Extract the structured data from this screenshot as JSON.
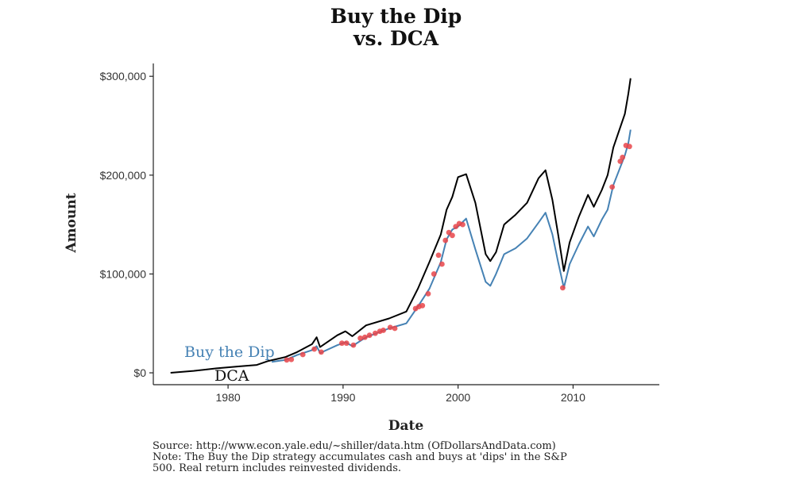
{
  "chart_data": {
    "type": "line",
    "title_line1": "Buy the Dip",
    "title_line2": "vs. DCA",
    "xlabel": "Date",
    "ylabel": "Amount",
    "xlim": [
      1973.5,
      2017.5
    ],
    "ylim": [
      -12000,
      313000
    ],
    "x_ticks": [
      1980,
      1990,
      2000,
      2010
    ],
    "x_tick_labels": [
      "1980",
      "1990",
      "2000",
      "2010"
    ],
    "y_ticks": [
      0,
      100000,
      200000,
      300000
    ],
    "y_tick_labels": [
      "$0",
      "$100,000",
      "$200,000",
      "$300,000"
    ],
    "grid": false,
    "legend": "inline labels",
    "series": [
      {
        "name": "DCA",
        "color": "#000000",
        "points": [
          [
            1975,
            0
          ],
          [
            1977,
            2000
          ],
          [
            1979,
            4500
          ],
          [
            1981,
            6500
          ],
          [
            1982.5,
            8000
          ],
          [
            1983.5,
            12000
          ],
          [
            1985,
            16000
          ],
          [
            1986,
            21000
          ],
          [
            1987.3,
            29000
          ],
          [
            1987.7,
            36000
          ],
          [
            1988,
            26000
          ],
          [
            1989.5,
            38000
          ],
          [
            1990.2,
            42000
          ],
          [
            1990.8,
            37000
          ],
          [
            1992,
            48000
          ],
          [
            1994,
            55000
          ],
          [
            1995.5,
            62000
          ],
          [
            1996.5,
            85000
          ],
          [
            1997.5,
            112000
          ],
          [
            1998.5,
            140000
          ],
          [
            1999,
            165000
          ],
          [
            1999.5,
            178000
          ],
          [
            2000,
            198000
          ],
          [
            2000.7,
            201000
          ],
          [
            2001.5,
            172000
          ],
          [
            2002.4,
            120000
          ],
          [
            2002.8,
            113000
          ],
          [
            2003.3,
            122000
          ],
          [
            2004,
            150000
          ],
          [
            2005,
            160000
          ],
          [
            2006,
            172000
          ],
          [
            2007,
            197000
          ],
          [
            2007.6,
            205000
          ],
          [
            2008.2,
            175000
          ],
          [
            2008.7,
            140000
          ],
          [
            2009.2,
            103000
          ],
          [
            2009.7,
            132000
          ],
          [
            2010.5,
            158000
          ],
          [
            2011.3,
            180000
          ],
          [
            2011.8,
            168000
          ],
          [
            2012.5,
            185000
          ],
          [
            2013,
            200000
          ],
          [
            2013.5,
            228000
          ],
          [
            2014.5,
            262000
          ],
          [
            2014.8,
            282000
          ],
          [
            2015,
            298000
          ]
        ]
      },
      {
        "name": "Buy the Dip",
        "color": "#4682b4",
        "points": [
          [
            1983.8,
            11000
          ],
          [
            1985,
            13000
          ],
          [
            1986,
            18000
          ],
          [
            1987.3,
            23000
          ],
          [
            1987.7,
            27000
          ],
          [
            1988,
            20000
          ],
          [
            1989.5,
            28000
          ],
          [
            1990.2,
            31000
          ],
          [
            1990.8,
            27000
          ],
          [
            1992,
            36000
          ],
          [
            1994,
            45000
          ],
          [
            1995.5,
            50000
          ],
          [
            1996.5,
            67000
          ],
          [
            1997.5,
            85000
          ],
          [
            1998.5,
            112000
          ],
          [
            1999,
            135000
          ],
          [
            1999.5,
            145000
          ],
          [
            2000,
            148000
          ],
          [
            2000.7,
            156000
          ],
          [
            2001.5,
            125000
          ],
          [
            2002.4,
            92000
          ],
          [
            2002.8,
            88000
          ],
          [
            2003.3,
            100000
          ],
          [
            2004,
            120000
          ],
          [
            2005,
            126000
          ],
          [
            2006,
            136000
          ],
          [
            2007,
            152000
          ],
          [
            2007.6,
            162000
          ],
          [
            2008.2,
            140000
          ],
          [
            2008.7,
            112000
          ],
          [
            2009.2,
            86000
          ],
          [
            2009.7,
            110000
          ],
          [
            2010.5,
            130000
          ],
          [
            2011.3,
            148000
          ],
          [
            2011.8,
            138000
          ],
          [
            2012.5,
            155000
          ],
          [
            2013,
            165000
          ],
          [
            2013.5,
            190000
          ],
          [
            2014.5,
            220000
          ],
          [
            2014.8,
            232000
          ],
          [
            2015,
            246000
          ]
        ]
      }
    ],
    "dip_points": {
      "name": "dips",
      "color": "#e8454a",
      "points": [
        [
          1985.1,
          13000
        ],
        [
          1985.5,
          13500
        ],
        [
          1986.5,
          18500
        ],
        [
          1987.5,
          24000
        ],
        [
          1988.1,
          21000
        ],
        [
          1989.9,
          30000
        ],
        [
          1990.3,
          30000
        ],
        [
          1990.9,
          28000
        ],
        [
          1991.5,
          35000
        ],
        [
          1991.9,
          36000
        ],
        [
          1992.3,
          38000
        ],
        [
          1992.8,
          40000
        ],
        [
          1993.2,
          42000
        ],
        [
          1993.5,
          43000
        ],
        [
          1994.1,
          46000
        ],
        [
          1994.5,
          45000
        ],
        [
          1996.3,
          65000
        ],
        [
          1996.6,
          67000
        ],
        [
          1996.9,
          68000
        ],
        [
          1997.4,
          80000
        ],
        [
          1997.9,
          100000
        ],
        [
          1998.3,
          119000
        ],
        [
          1998.6,
          110000
        ],
        [
          1998.9,
          134000
        ],
        [
          1999.2,
          142000
        ],
        [
          1999.5,
          139000
        ],
        [
          1999.8,
          148000
        ],
        [
          2000.1,
          151000
        ],
        [
          2000.4,
          150000
        ],
        [
          2009.1,
          86000
        ],
        [
          2013.4,
          188000
        ],
        [
          2014.1,
          214000
        ],
        [
          2014.3,
          218000
        ],
        [
          2014.6,
          230000
        ],
        [
          2014.9,
          229000
        ]
      ]
    },
    "series_labels": {
      "buy_the_dip": "Buy the Dip",
      "dca": "DCA"
    },
    "caption_line1": "Source:  http://www.econ.yale.edu/~shiller/data.htm (OfDollarsAndData.com)",
    "caption_line2": "Note: The Buy the Dip strategy accumulates cash and buys at 'dips' in the S&P",
    "caption_line3": "500. Real return includes reinvested dividends."
  }
}
